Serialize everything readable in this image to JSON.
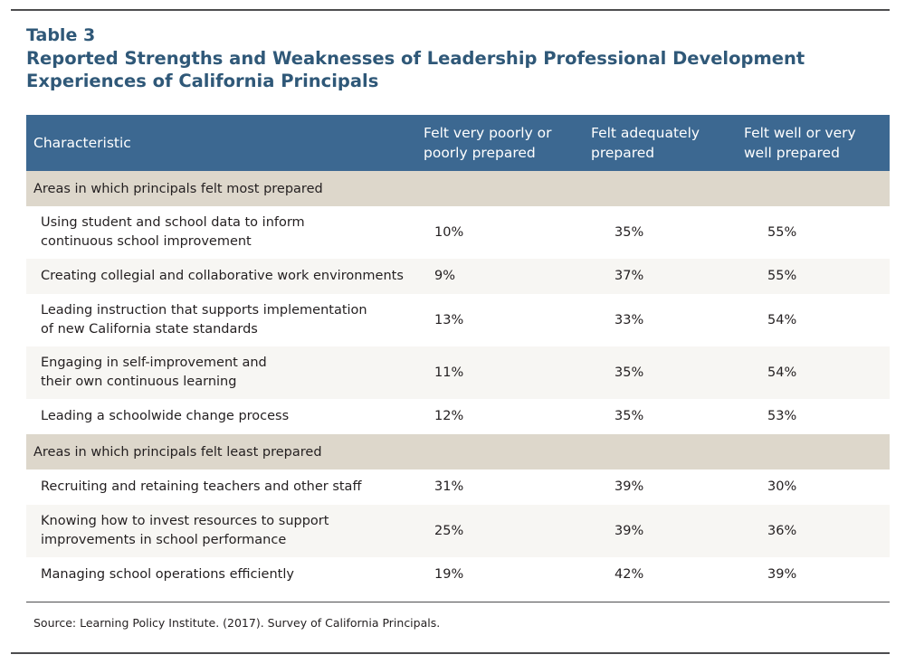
{
  "title": {
    "number": "Table 3",
    "text": "Reported Strengths and Weaknesses of Leadership Professional Development Experiences of California Principals"
  },
  "table": {
    "headers": {
      "characteristic": "Characteristic",
      "poorly": "Felt very poorly or poorly prepared",
      "adequately": "Felt adequately prepared",
      "well": "Felt well or very well prepared"
    },
    "sections": [
      {
        "label": "Areas in which principals felt most prepared",
        "rows": [
          {
            "characteristic_lines": [
              "Using student and school data to inform",
              "continuous school improvement"
            ],
            "poorly": "10%",
            "adequately": "35%",
            "well": "55%"
          },
          {
            "characteristic_lines": [
              "Creating collegial and collaborative work environments"
            ],
            "poorly": "9%",
            "adequately": "37%",
            "well": "55%"
          },
          {
            "characteristic_lines": [
              "Leading instruction that supports implementation",
              "of new California state standards"
            ],
            "poorly": "13%",
            "adequately": "33%",
            "well": "54%"
          },
          {
            "characteristic_lines": [
              "Engaging in self-improvement and",
              "their own continuous learning"
            ],
            "poorly": "11%",
            "adequately": "35%",
            "well": "54%"
          },
          {
            "characteristic_lines": [
              "Leading a schoolwide change process"
            ],
            "poorly": "12%",
            "adequately": "35%",
            "well": "53%"
          }
        ]
      },
      {
        "label": "Areas in which principals felt least prepared",
        "rows": [
          {
            "characteristic_lines": [
              "Recruiting and retaining teachers and other staff"
            ],
            "poorly": "31%",
            "adequately": "39%",
            "well": "30%"
          },
          {
            "characteristic_lines": [
              "Knowing how to invest resources to support",
              "improvements in school performance"
            ],
            "poorly": "25%",
            "adequately": "39%",
            "well": "36%"
          },
          {
            "characteristic_lines": [
              "Managing school operations efficiently"
            ],
            "poorly": "19%",
            "adequately": "42%",
            "well": "39%"
          }
        ]
      }
    ]
  },
  "source": "Source: Learning Policy Institute. (2017). Survey of California Principals."
}
